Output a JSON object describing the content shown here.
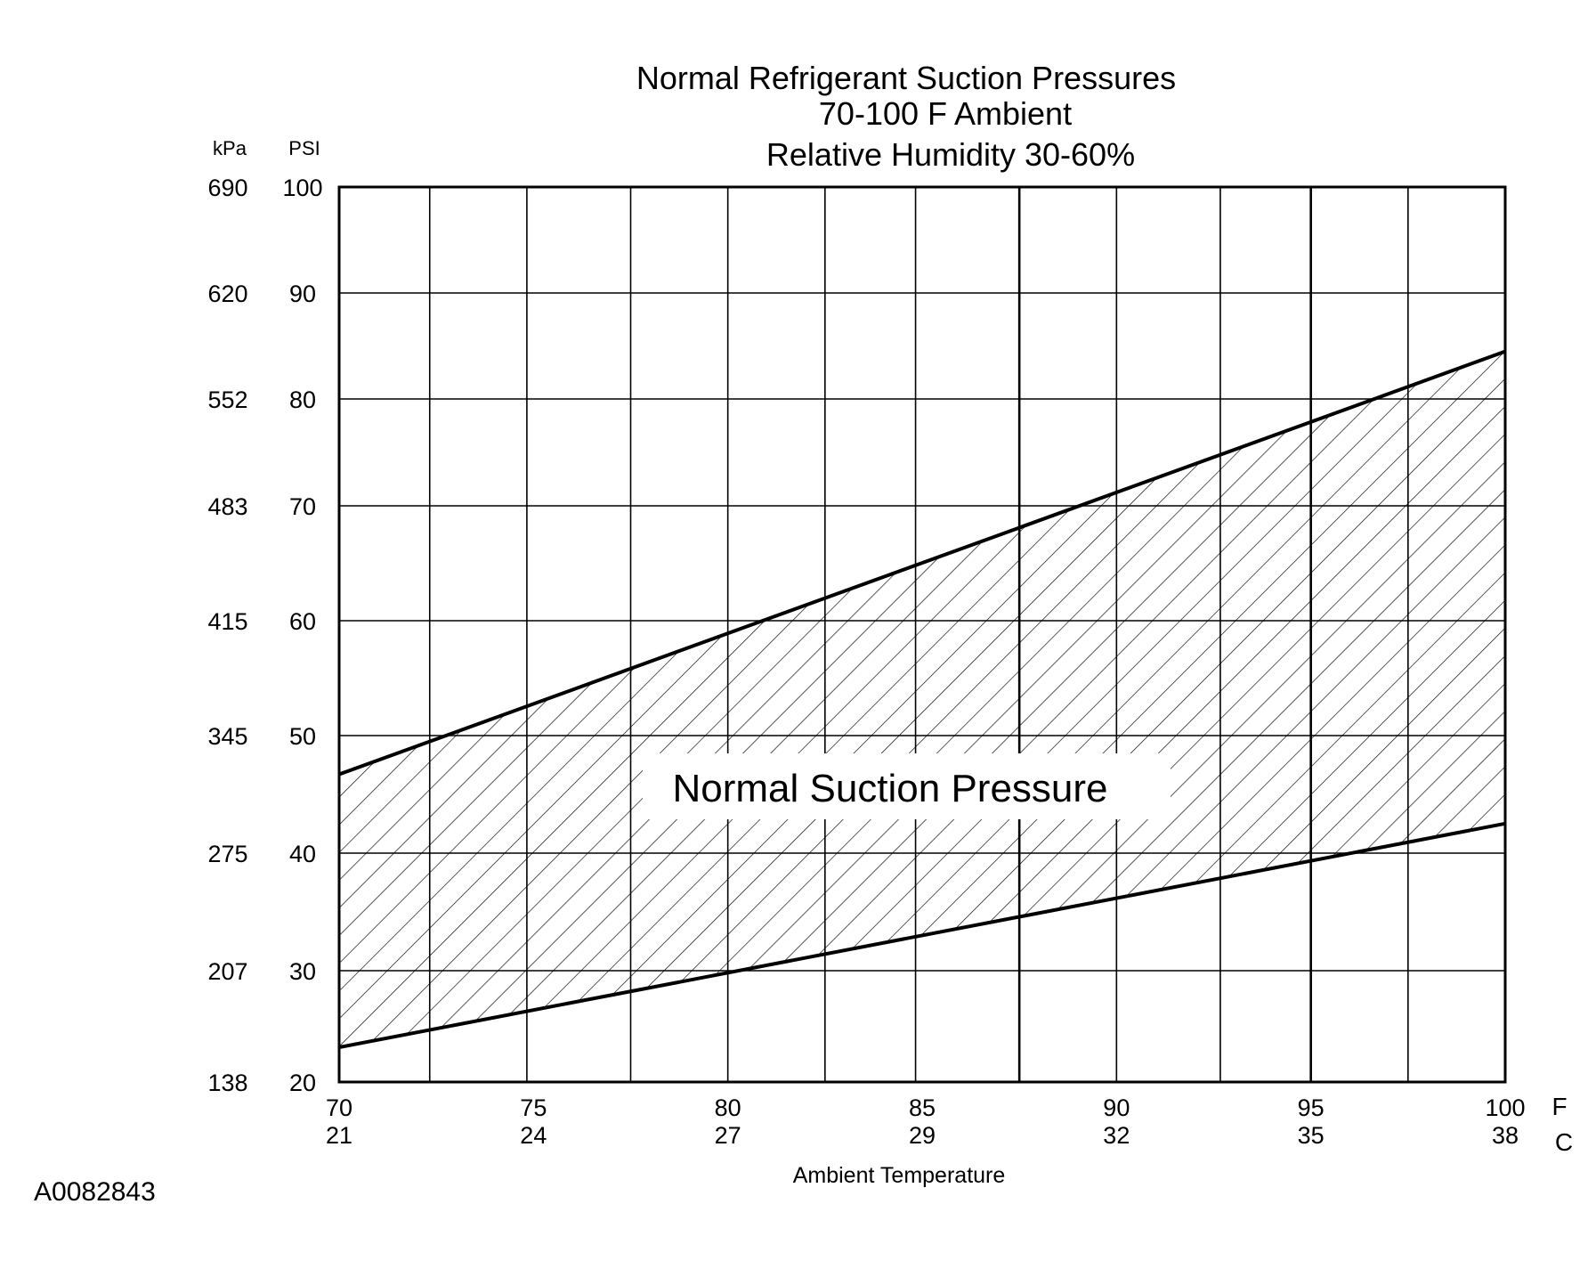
{
  "chart_data": {
    "type": "area",
    "title": [
      "Normal  Refrigerant  Suction  Pressures",
      "70-100 F Ambient",
      "Relative Humidity 30-60%"
    ],
    "xlabel": "Ambient Temperature",
    "x_unit_primary": "F",
    "x_unit_secondary": "C",
    "y_unit_primary": "PSI",
    "y_unit_secondary": "kPa",
    "xlim": [
      70,
      100
    ],
    "ylim": [
      20,
      100
    ],
    "x_ticks": [
      {
        "f": "70",
        "c": "21"
      },
      {
        "f": "75",
        "c": "24"
      },
      {
        "f": "80",
        "c": "27"
      },
      {
        "f": "85",
        "c": "29"
      },
      {
        "f": "90",
        "c": "32"
      },
      {
        "f": "95",
        "c": "35"
      },
      {
        "f": "100",
        "c": "38"
      }
    ],
    "y_ticks": [
      {
        "psi": "100",
        "kpa": "690"
      },
      {
        "psi": "90",
        "kpa": "620"
      },
      {
        "psi": "80",
        "kpa": "552"
      },
      {
        "psi": "70",
        "kpa": "483"
      },
      {
        "psi": "60",
        "kpa": "415"
      },
      {
        "psi": "50",
        "kpa": "345"
      },
      {
        "psi": "40",
        "kpa": "275"
      },
      {
        "psi": "30",
        "kpa": "207"
      },
      {
        "psi": "20",
        "kpa": "138"
      }
    ],
    "grid": true,
    "x_gridlines": [
      70,
      72.33,
      74.83,
      77.5,
      80,
      82.5,
      84.83,
      87.5,
      90,
      92.67,
      95,
      97.5,
      100
    ],
    "series": [
      {
        "name": "upper",
        "x": [
          70,
          100
        ],
        "y": [
          47.5,
          85.3
        ]
      },
      {
        "name": "lower",
        "x": [
          70,
          100
        ],
        "y": [
          23.1,
          43.1
        ]
      }
    ],
    "region": {
      "label": "Normal Suction Pressure",
      "fill": "hatched"
    },
    "figure_id": "A0082843"
  }
}
